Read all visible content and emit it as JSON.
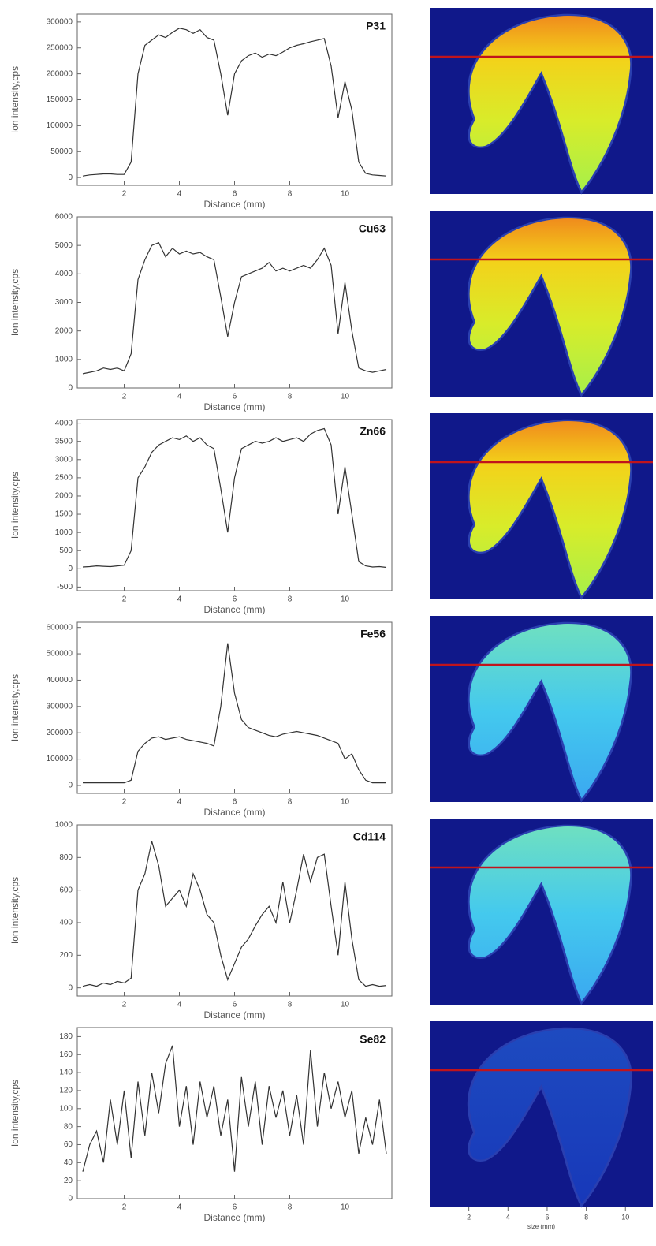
{
  "chart_data": [
    {
      "type": "line",
      "title": "P31",
      "xlabel": "Distance (mm)",
      "ylabel": "Ion intensity,cps",
      "color": "#333333",
      "x": [
        0.5,
        0.75,
        1,
        1.25,
        1.5,
        1.75,
        2,
        2.25,
        2.5,
        2.75,
        3,
        3.25,
        3.5,
        3.75,
        4,
        4.25,
        4.5,
        4.75,
        5,
        5.25,
        5.5,
        5.75,
        6,
        6.25,
        6.5,
        6.75,
        7,
        7.25,
        7.5,
        7.75,
        8,
        8.25,
        8.5,
        8.75,
        9,
        9.25,
        9.5,
        9.75,
        10,
        10.25,
        10.5,
        10.75,
        11,
        11.25,
        11.5
      ],
      "values": [
        3000,
        5000,
        6000,
        7000,
        7000,
        6000,
        6000,
        30000,
        200000,
        255000,
        265000,
        275000,
        270000,
        280000,
        288000,
        285000,
        278000,
        285000,
        270000,
        265000,
        200000,
        120000,
        200000,
        225000,
        235000,
        240000,
        232000,
        238000,
        235000,
        242000,
        250000,
        255000,
        258000,
        262000,
        265000,
        268000,
        215000,
        115000,
        185000,
        130000,
        30000,
        8000,
        5000,
        4000,
        3000
      ],
      "xlim": [
        0.3,
        11.7
      ],
      "xticks": [
        2,
        4,
        6,
        8,
        10
      ],
      "ylim": [
        -15000,
        315000
      ],
      "yticks": [
        0,
        50000,
        100000,
        150000,
        200000,
        250000,
        300000
      ]
    },
    {
      "type": "line",
      "title": "Cu63",
      "xlabel": "Distance (mm)",
      "ylabel": "Ion intensity,cps",
      "color": "#333333",
      "x": [
        0.5,
        0.75,
        1,
        1.25,
        1.5,
        1.75,
        2,
        2.25,
        2.5,
        2.75,
        3,
        3.25,
        3.5,
        3.75,
        4,
        4.25,
        4.5,
        4.75,
        5,
        5.25,
        5.5,
        5.75,
        6,
        6.25,
        6.5,
        6.75,
        7,
        7.25,
        7.5,
        7.75,
        8,
        8.25,
        8.5,
        8.75,
        9,
        9.25,
        9.5,
        9.75,
        10,
        10.25,
        10.5,
        10.75,
        11,
        11.25,
        11.5
      ],
      "values": [
        500,
        550,
        600,
        700,
        650,
        700,
        600,
        1200,
        3800,
        4500,
        5000,
        5100,
        4600,
        4900,
        4700,
        4800,
        4700,
        4750,
        4600,
        4500,
        3200,
        1800,
        3000,
        3900,
        4000,
        4100,
        4200,
        4400,
        4100,
        4200,
        4100,
        4200,
        4300,
        4200,
        4500,
        4900,
        4300,
        1900,
        3700,
        2000,
        700,
        600,
        550,
        600,
        650
      ],
      "xlim": [
        0.3,
        11.7
      ],
      "xticks": [
        2,
        4,
        6,
        8,
        10
      ],
      "ylim": [
        0,
        6000
      ],
      "yticks": [
        0,
        1000,
        2000,
        3000,
        4000,
        5000,
        6000
      ]
    },
    {
      "type": "line",
      "title": "Zn66",
      "xlabel": "Distance (mm)",
      "ylabel": "Ion intensity,cps",
      "color": "#333333",
      "x": [
        0.5,
        0.75,
        1,
        1.25,
        1.5,
        1.75,
        2,
        2.25,
        2.5,
        2.75,
        3,
        3.25,
        3.5,
        3.75,
        4,
        4.25,
        4.5,
        4.75,
        5,
        5.25,
        5.5,
        5.75,
        6,
        6.25,
        6.5,
        6.75,
        7,
        7.25,
        7.5,
        7.75,
        8,
        8.25,
        8.5,
        8.75,
        9,
        9.25,
        9.5,
        9.75,
        10,
        10.25,
        10.5,
        10.75,
        11,
        11.25,
        11.5
      ],
      "values": [
        50,
        60,
        80,
        70,
        60,
        80,
        100,
        500,
        2500,
        2800,
        3200,
        3400,
        3500,
        3600,
        3550,
        3650,
        3500,
        3600,
        3400,
        3300,
        2200,
        1000,
        2500,
        3300,
        3400,
        3500,
        3450,
        3500,
        3600,
        3500,
        3550,
        3600,
        3500,
        3700,
        3800,
        3850,
        3400,
        1500,
        2800,
        1500,
        200,
        80,
        50,
        60,
        40
      ],
      "xlim": [
        0.3,
        11.7
      ],
      "xticks": [
        2,
        4,
        6,
        8,
        10
      ],
      "ylim": [
        -600,
        4100
      ],
      "yticks": [
        -500,
        0,
        500,
        1000,
        1500,
        2000,
        2500,
        3000,
        3500,
        4000
      ]
    },
    {
      "type": "line",
      "title": "Fe56",
      "xlabel": "Distance (mm)",
      "ylabel": "Ion intensity,cps",
      "color": "#333333",
      "x": [
        0.5,
        0.75,
        1,
        1.25,
        1.5,
        1.75,
        2,
        2.25,
        2.5,
        2.75,
        3,
        3.25,
        3.5,
        3.75,
        4,
        4.25,
        4.5,
        4.75,
        5,
        5.25,
        5.5,
        5.75,
        6,
        6.25,
        6.5,
        6.75,
        7,
        7.25,
        7.5,
        7.75,
        8,
        8.25,
        8.5,
        8.75,
        9,
        9.25,
        9.5,
        9.75,
        10,
        10.25,
        10.5,
        10.75,
        11,
        11.25,
        11.5
      ],
      "values": [
        10000,
        10000,
        10000,
        10000,
        10000,
        10000,
        10000,
        20000,
        130000,
        160000,
        180000,
        185000,
        175000,
        180000,
        185000,
        175000,
        170000,
        165000,
        160000,
        150000,
        300000,
        540000,
        350000,
        250000,
        220000,
        210000,
        200000,
        190000,
        185000,
        195000,
        200000,
        205000,
        200000,
        195000,
        190000,
        180000,
        170000,
        160000,
        100000,
        120000,
        60000,
        20000,
        10000,
        10000,
        10000
      ],
      "xlim": [
        0.3,
        11.7
      ],
      "xticks": [
        2,
        4,
        6,
        8,
        10
      ],
      "ylim": [
        -30000,
        620000
      ],
      "yticks": [
        0,
        100000,
        200000,
        300000,
        400000,
        500000,
        600000
      ]
    },
    {
      "type": "line",
      "title": "Cd114",
      "xlabel": "Distance (mm)",
      "ylabel": "Ion intensity,cps",
      "color": "#333333",
      "x": [
        0.5,
        0.75,
        1,
        1.25,
        1.5,
        1.75,
        2,
        2.25,
        2.5,
        2.75,
        3,
        3.25,
        3.5,
        3.75,
        4,
        4.25,
        4.5,
        4.75,
        5,
        5.25,
        5.5,
        5.75,
        6,
        6.25,
        6.5,
        6.75,
        7,
        7.25,
        7.5,
        7.75,
        8,
        8.25,
        8.5,
        8.75,
        9,
        9.25,
        9.5,
        9.75,
        10,
        10.25,
        10.5,
        10.75,
        11,
        11.25,
        11.5
      ],
      "values": [
        10,
        20,
        10,
        30,
        20,
        40,
        30,
        60,
        600,
        700,
        900,
        750,
        500,
        550,
        600,
        500,
        700,
        600,
        450,
        400,
        200,
        50,
        150,
        250,
        300,
        380,
        450,
        500,
        400,
        650,
        400,
        600,
        820,
        650,
        800,
        820,
        500,
        200,
        650,
        300,
        50,
        10,
        20,
        10,
        15
      ],
      "xlim": [
        0.3,
        11.7
      ],
      "xticks": [
        2,
        4,
        6,
        8,
        10
      ],
      "ylim": [
        -50,
        1000
      ],
      "yticks": [
        0,
        200,
        400,
        600,
        800,
        1000
      ]
    },
    {
      "type": "line",
      "title": "Se82",
      "xlabel": "Distance (mm)",
      "ylabel": "Ion intensity,cps",
      "color": "#333333",
      "x": [
        0.5,
        0.75,
        1,
        1.25,
        1.5,
        1.75,
        2,
        2.25,
        2.5,
        2.75,
        3,
        3.25,
        3.5,
        3.75,
        4,
        4.25,
        4.5,
        4.75,
        5,
        5.25,
        5.5,
        5.75,
        6,
        6.25,
        6.5,
        6.75,
        7,
        7.25,
        7.5,
        7.75,
        8,
        8.25,
        8.5,
        8.75,
        9,
        9.25,
        9.5,
        9.75,
        10,
        10.25,
        10.5,
        10.75,
        11,
        11.25,
        11.5
      ],
      "values": [
        30,
        60,
        75,
        40,
        110,
        60,
        120,
        45,
        130,
        70,
        140,
        95,
        150,
        170,
        80,
        125,
        60,
        130,
        90,
        125,
        70,
        110,
        30,
        135,
        80,
        130,
        60,
        125,
        90,
        120,
        70,
        115,
        60,
        165,
        80,
        140,
        100,
        130,
        90,
        120,
        50,
        90,
        60,
        110,
        50
      ],
      "xlim": [
        0.3,
        11.7
      ],
      "xticks": [
        2,
        4,
        6,
        8,
        10
      ],
      "ylim": [
        0,
        190
      ],
      "yticks": [
        0,
        20,
        40,
        60,
        80,
        100,
        120,
        140,
        160,
        180
      ]
    }
  ],
  "image_axis": {
    "xlabel": "size (mm)",
    "xlim": [
      0,
      11.4
    ],
    "xticks": [
      2,
      4,
      6,
      8,
      10
    ]
  }
}
